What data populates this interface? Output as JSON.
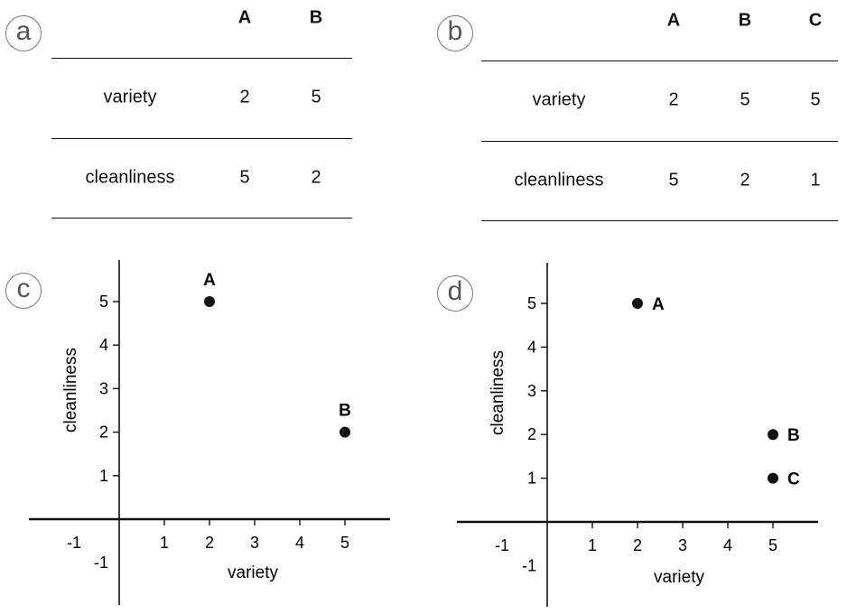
{
  "panels": {
    "a": {
      "label": "a",
      "columns": [
        "A",
        "B"
      ],
      "rows": [
        {
          "name": "variety",
          "values": [
            "2",
            "5"
          ]
        },
        {
          "name": "cleanliness",
          "values": [
            "5",
            "2"
          ]
        }
      ]
    },
    "b": {
      "label": "b",
      "columns": [
        "A",
        "B",
        "C"
      ],
      "rows": [
        {
          "name": "variety",
          "values": [
            "2",
            "5",
            "5"
          ]
        },
        {
          "name": "cleanliness",
          "values": [
            "5",
            "2",
            "1"
          ]
        }
      ]
    },
    "c": {
      "label": "c"
    },
    "d": {
      "label": "d"
    }
  },
  "chart_data": [
    {
      "type": "scatter",
      "panel": "c",
      "xlabel": "variety",
      "ylabel": "cleanliness",
      "xlim": [
        -1.8,
        6
      ],
      "ylim": [
        -1.9,
        5.8
      ],
      "xticks": [
        -1,
        1,
        2,
        3,
        4,
        5
      ],
      "yticks": [
        -1,
        1,
        2,
        3,
        4,
        5
      ],
      "grid": false,
      "points": [
        {
          "label": "A",
          "x": 2,
          "y": 5,
          "label_pos": "above"
        },
        {
          "label": "B",
          "x": 5,
          "y": 2,
          "label_pos": "above"
        }
      ]
    },
    {
      "type": "scatter",
      "panel": "d",
      "xlabel": "variety",
      "ylabel": "cleanliness",
      "xlim": [
        -1.8,
        6
      ],
      "ylim": [
        -1.9,
        5.8
      ],
      "xticks": [
        -1,
        1,
        2,
        3,
        4,
        5
      ],
      "yticks": [
        -1,
        1,
        2,
        3,
        4,
        5
      ],
      "grid": false,
      "points": [
        {
          "label": "A",
          "x": 2,
          "y": 5,
          "label_pos": "right"
        },
        {
          "label": "B",
          "x": 5,
          "y": 2,
          "label_pos": "right"
        },
        {
          "label": "C",
          "x": 5,
          "y": 1,
          "label_pos": "right"
        }
      ]
    }
  ]
}
